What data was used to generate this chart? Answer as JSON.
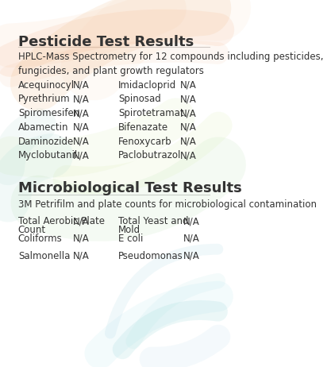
{
  "background_color": "#ffffff",
  "section1_title": "Pesticide Test Results",
  "section1_subtitle": "HPLC-Mass Spectrometry for 12 compounds including pesticides,\nfungicides, and plant growth regulators",
  "pesticide_left": [
    [
      "Acequinocyl",
      "N/A"
    ],
    [
      "Pyrethrium",
      "N/A"
    ],
    [
      "Spiromesifen",
      "N/A"
    ],
    [
      "Abamectin",
      "N/A"
    ],
    [
      "Daminozide",
      "N/A"
    ],
    [
      "Myclobutanil",
      "N/A"
    ]
  ],
  "pesticide_right": [
    [
      "Imidacloprid",
      "N/A"
    ],
    [
      "Spinosad",
      "N/A"
    ],
    [
      "Spirotetramat",
      "N/A"
    ],
    [
      "Bifenazate",
      "N/A"
    ],
    [
      "Fenoxycarb",
      "N/A"
    ],
    [
      "Paclobutrazol",
      "N/A"
    ]
  ],
  "section2_title": "Microbiological Test Results",
  "section2_subtitle": "3M Petrifilm and plate counts for microbiological contamination",
  "micro_left": [
    [
      "Total Aerobic Plate\nCount",
      "N/A"
    ],
    [
      "Coliforms",
      "N/A"
    ],
    [
      "Salmonella",
      "N/A"
    ]
  ],
  "micro_right": [
    [
      "Total Yeast and\nMold",
      "N/A"
    ],
    [
      "E coli",
      "N/A"
    ],
    [
      "Pseudomonas",
      "N/A"
    ]
  ],
  "title_fontsize": 13,
  "subtitle_fontsize": 8.5,
  "item_fontsize": 8.5,
  "text_color": "#333333",
  "line_color": "#cccccc"
}
